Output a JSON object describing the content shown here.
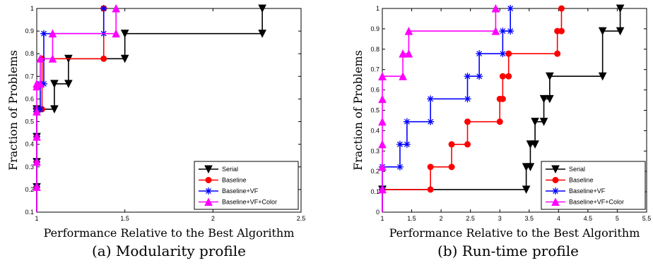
{
  "chart_data": [
    {
      "type": "line",
      "caption": "(a) Modularity profile",
      "xlabel": "Performance Relative to the Best Algorithm",
      "ylabel": "Fraction of Problems",
      "xlim": [
        1,
        2.5
      ],
      "ylim": [
        0.1,
        1
      ],
      "xticks": [
        "1",
        "1.5",
        "2",
        "2.5"
      ],
      "yticks": [
        "0.1",
        "0.2",
        "0.3",
        "0.4",
        "0.5",
        "0.6",
        "0.7",
        "0.8",
        "0.9",
        "1"
      ],
      "legend_position": "bottom-right",
      "series": [
        {
          "name": "Serial",
          "color": "#000000",
          "marker": "triangle-down",
          "x": [
            1,
            1.1,
            1.18,
            1.5,
            2.28
          ],
          "y": [
            0.555,
            0.667,
            0.778,
            0.889,
            1.0
          ]
        },
        {
          "name": "Baseline",
          "color": "#ff0000",
          "marker": "circle",
          "x": [
            1,
            1.03,
            1.38
          ],
          "y": [
            0.555,
            0.778,
            1.0
          ]
        },
        {
          "name": "Baseline+VF",
          "color": "#0000ff",
          "marker": "star",
          "x": [
            1,
            1.02,
            1.04,
            1.38
          ],
          "y": [
            0.555,
            0.667,
            0.889,
            1.0
          ]
        },
        {
          "name": "Baseline+VF+Color",
          "color": "#ff00ff",
          "marker": "triangle-up",
          "x": [
            1,
            1.02,
            1.09,
            1.45
          ],
          "y": [
            0.667,
            0.778,
            0.889,
            1.0
          ]
        }
      ]
    },
    {
      "type": "line",
      "caption": "(b) Run-time profile",
      "xlabel": "Performance Relative to the Best Algorithm",
      "ylabel": "Fraction of Problems",
      "xlim": [
        1,
        5.5
      ],
      "ylim": [
        0,
        1
      ],
      "xticks": [
        "1",
        "1.5",
        "2",
        "2.5",
        "3",
        "3.5",
        "4",
        "4.5",
        "5",
        "5.5"
      ],
      "yticks": [
        "0",
        "0.1",
        "0.2",
        "0.3",
        "0.4",
        "0.5",
        "0.6",
        "0.7",
        "0.8",
        "0.9",
        "1"
      ],
      "legend_position": "bottom-right",
      "series": [
        {
          "name": "Serial",
          "color": "#000000",
          "marker": "triangle-down",
          "x": [
            1,
            3.45,
            3.52,
            3.6,
            3.75,
            3.85,
            4.75,
            5.05
          ],
          "y": [
            0.111,
            0.222,
            0.333,
            0.444,
            0.556,
            0.667,
            0.889,
            1.0
          ]
        },
        {
          "name": "Baseline",
          "color": "#ff0000",
          "marker": "circle",
          "x": [
            1,
            1.82,
            2.18,
            2.45,
            3.0,
            3.05,
            3.15,
            3.98,
            4.05
          ],
          "y": [
            0.111,
            0.222,
            0.333,
            0.444,
            0.556,
            0.667,
            0.778,
            0.889,
            1.0
          ]
        },
        {
          "name": "Baseline+VF",
          "color": "#0000ff",
          "marker": "star",
          "x": [
            1,
            1.3,
            1.42,
            1.82,
            2.45,
            2.65,
            3.05,
            3.18
          ],
          "y": [
            0.222,
            0.333,
            0.444,
            0.556,
            0.667,
            0.778,
            0.889,
            1.0
          ]
        },
        {
          "name": "Baseline+VF+Color",
          "color": "#ff00ff",
          "marker": "triangle-up",
          "x": [
            1,
            1.35,
            1.45,
            2.93
          ],
          "y": [
            0.667,
            0.778,
            0.889,
            1.0
          ]
        }
      ]
    }
  ]
}
